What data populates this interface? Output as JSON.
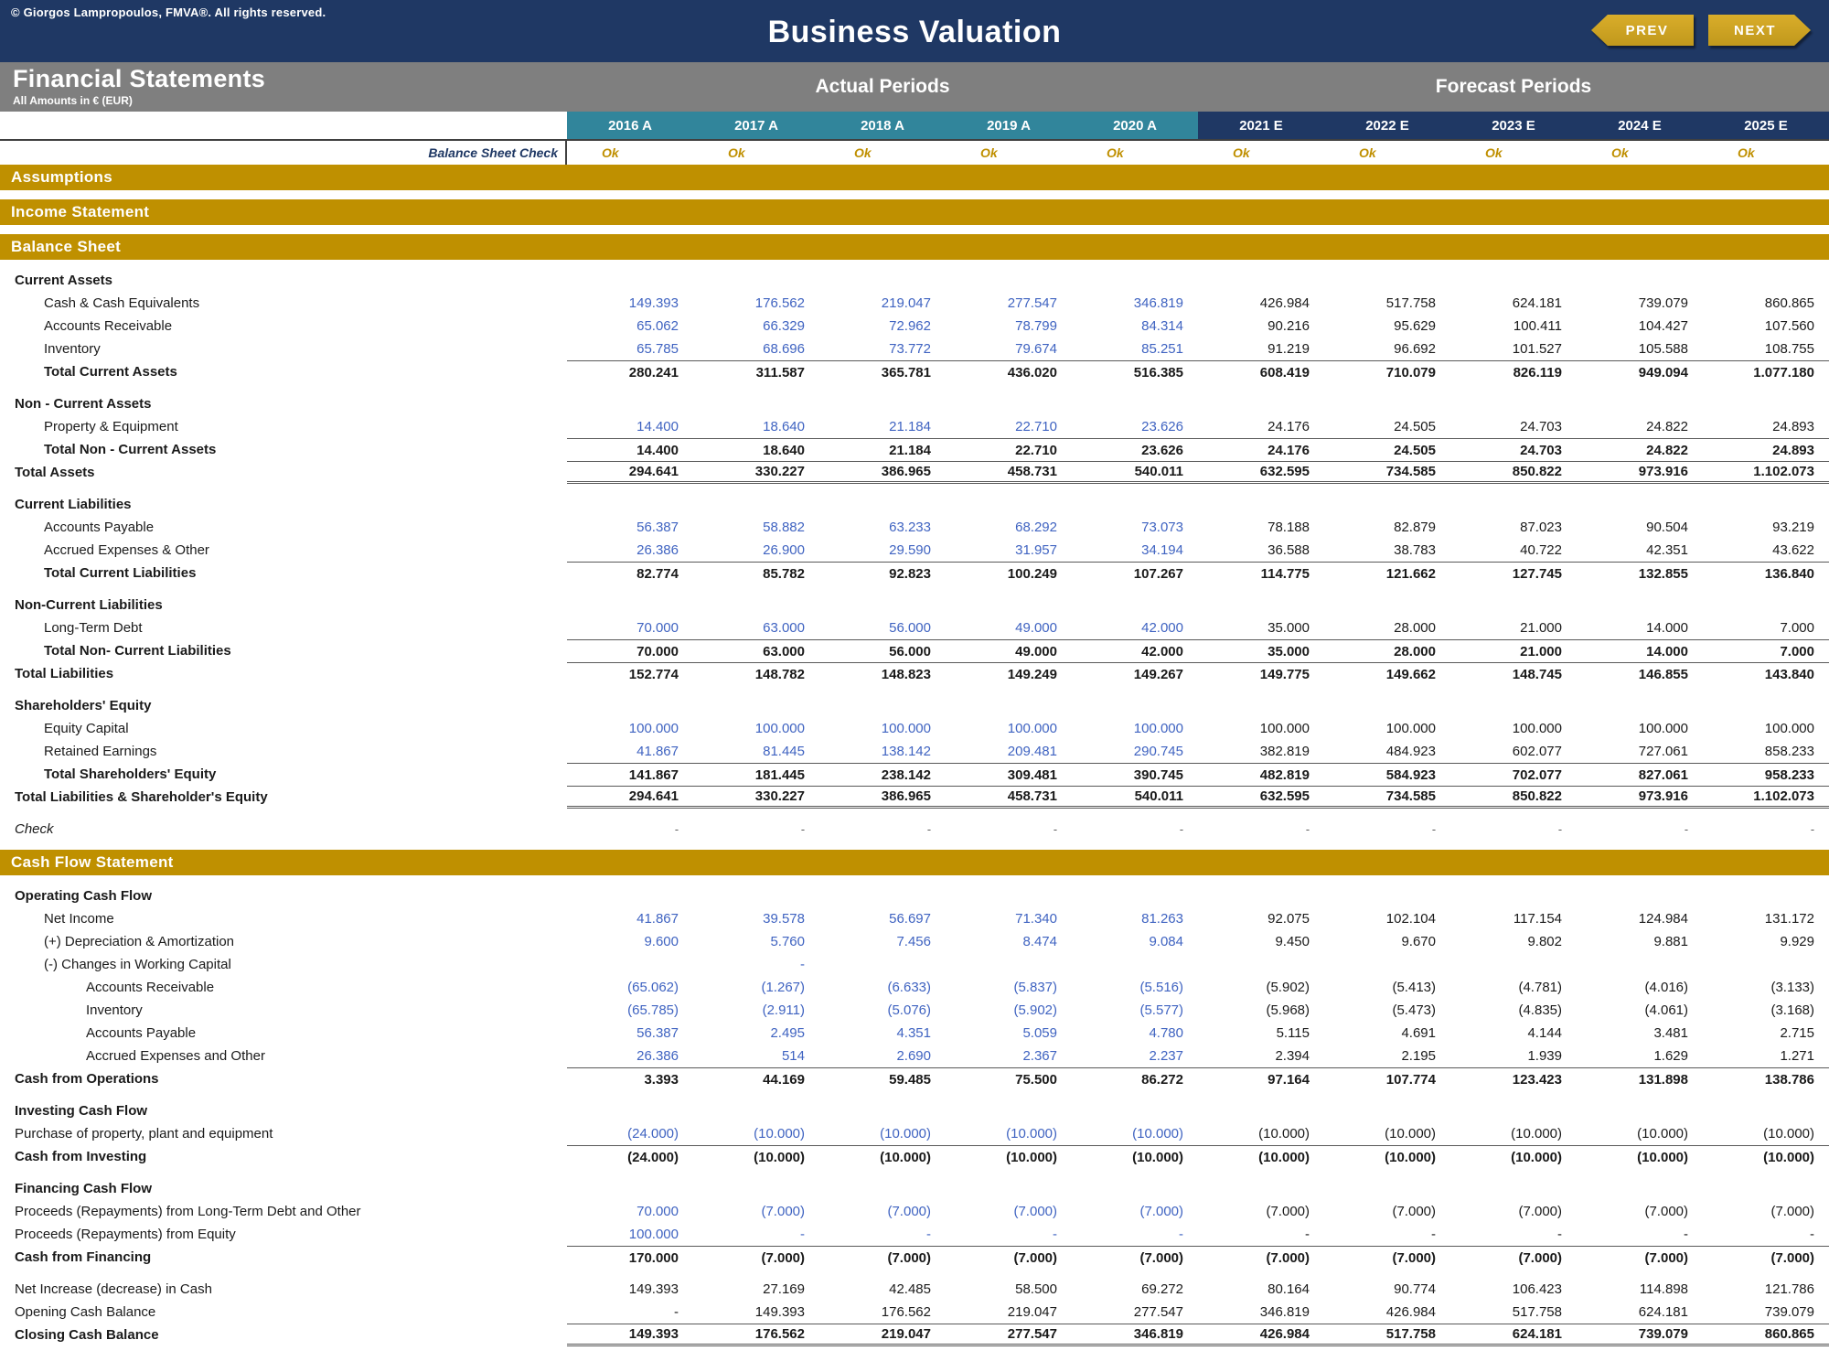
{
  "header": {
    "copyright": "© Giorgos Lampropoulos, FMVA®. All rights reserved.",
    "title": "Business Valuation",
    "prev_label": "PREV",
    "next_label": "NEXT"
  },
  "bands": {
    "left_title": "Financial Statements",
    "subtitle": "All Amounts in  € (EUR)",
    "actual_label": "Actual Periods",
    "forecast_label": "Forecast Periods"
  },
  "colors": {
    "navy": "#1f3864",
    "teal_actual": "#31859b",
    "gold_bar": "#bf9000",
    "ok_gold": "#bf8f00",
    "band_gray": "#7f7f7f",
    "actual_value_blue": "#3f63c1"
  },
  "table": {
    "actual_count": 5,
    "columns": [
      "2016 A",
      "2017 A",
      "2018 A",
      "2019 A",
      "2020 A",
      "2021 E",
      "2022 E",
      "2023 E",
      "2024 E",
      "2025 E"
    ],
    "check_row": {
      "label": "Balance Sheet Check",
      "values": [
        "Ok",
        "Ok",
        "Ok",
        "Ok",
        "Ok",
        "Ok",
        "Ok",
        "Ok",
        "Ok",
        "Ok"
      ]
    },
    "rows": [
      {
        "type": "bar",
        "label": "Assumptions"
      },
      {
        "type": "gap"
      },
      {
        "type": "bar",
        "label": "Income Statement"
      },
      {
        "type": "gap"
      },
      {
        "type": "bar",
        "label": "Balance Sheet"
      },
      {
        "type": "gap"
      },
      {
        "type": "header",
        "label": "Current Assets"
      },
      {
        "type": "row",
        "label": "Cash & Cash Equivalents",
        "indent": 1,
        "blue": true,
        "values": [
          "149.393",
          "176.562",
          "219.047",
          "277.547",
          "346.819",
          "426.984",
          "517.758",
          "624.181",
          "739.079",
          "860.865"
        ]
      },
      {
        "type": "row",
        "label": "Accounts Receivable",
        "indent": 1,
        "blue": true,
        "values": [
          "65.062",
          "66.329",
          "72.962",
          "78.799",
          "84.314",
          "90.216",
          "95.629",
          "100.411",
          "104.427",
          "107.560"
        ]
      },
      {
        "type": "row",
        "label": "Inventory",
        "indent": 1,
        "blue": true,
        "values": [
          "65.785",
          "68.696",
          "73.772",
          "79.674",
          "85.251",
          "91.219",
          "96.692",
          "101.527",
          "105.588",
          "108.755"
        ]
      },
      {
        "type": "row",
        "label": "Total Current Assets",
        "indent": 1,
        "bold": true,
        "border": "top",
        "values": [
          "280.241",
          "311.587",
          "365.781",
          "436.020",
          "516.385",
          "608.419",
          "710.079",
          "826.119",
          "949.094",
          "1.077.180"
        ]
      },
      {
        "type": "gap"
      },
      {
        "type": "header",
        "label": "Non - Current Assets"
      },
      {
        "type": "row",
        "label": "Property & Equipment",
        "indent": 1,
        "blue": true,
        "values": [
          "14.400",
          "18.640",
          "21.184",
          "22.710",
          "23.626",
          "24.176",
          "24.505",
          "24.703",
          "24.822",
          "24.893"
        ]
      },
      {
        "type": "row",
        "label": "Total Non - Current Assets",
        "indent": 1,
        "bold": true,
        "border": "top",
        "values": [
          "14.400",
          "18.640",
          "21.184",
          "22.710",
          "23.626",
          "24.176",
          "24.505",
          "24.703",
          "24.822",
          "24.893"
        ]
      },
      {
        "type": "row",
        "label": "Total Assets",
        "indent": 0,
        "bold": true,
        "border": "top-double",
        "values": [
          "294.641",
          "330.227",
          "386.965",
          "458.731",
          "540.011",
          "632.595",
          "734.585",
          "850.822",
          "973.916",
          "1.102.073"
        ]
      },
      {
        "type": "gap"
      },
      {
        "type": "header",
        "label": "Current Liabilities"
      },
      {
        "type": "row",
        "label": "Accounts Payable",
        "indent": 1,
        "blue": true,
        "values": [
          "56.387",
          "58.882",
          "63.233",
          "68.292",
          "73.073",
          "78.188",
          "82.879",
          "87.023",
          "90.504",
          "93.219"
        ]
      },
      {
        "type": "row",
        "label": "Accrued Expenses & Other",
        "indent": 1,
        "blue": true,
        "values": [
          "26.386",
          "26.900",
          "29.590",
          "31.957",
          "34.194",
          "36.588",
          "38.783",
          "40.722",
          "42.351",
          "43.622"
        ]
      },
      {
        "type": "row",
        "label": "Total Current Liabilities",
        "indent": 1,
        "bold": true,
        "border": "top",
        "values": [
          "82.774",
          "85.782",
          "92.823",
          "100.249",
          "107.267",
          "114.775",
          "121.662",
          "127.745",
          "132.855",
          "136.840"
        ]
      },
      {
        "type": "gap"
      },
      {
        "type": "header",
        "label": "Non-Current Liabilities"
      },
      {
        "type": "row",
        "label": "Long-Term Debt",
        "indent": 1,
        "blue": true,
        "values": [
          "70.000",
          "63.000",
          "56.000",
          "49.000",
          "42.000",
          "35.000",
          "28.000",
          "21.000",
          "14.000",
          "7.000"
        ]
      },
      {
        "type": "row",
        "label": "Total Non- Current Liabilities",
        "indent": 1,
        "bold": true,
        "border": "top",
        "values": [
          "70.000",
          "63.000",
          "56.000",
          "49.000",
          "42.000",
          "35.000",
          "28.000",
          "21.000",
          "14.000",
          "7.000"
        ]
      },
      {
        "type": "row",
        "label": "Total Liabilities",
        "indent": 0,
        "bold": true,
        "border": "top",
        "values": [
          "152.774",
          "148.782",
          "148.823",
          "149.249",
          "149.267",
          "149.775",
          "149.662",
          "148.745",
          "146.855",
          "143.840"
        ]
      },
      {
        "type": "gap"
      },
      {
        "type": "header",
        "label": "Shareholders' Equity"
      },
      {
        "type": "row",
        "label": "Equity Capital",
        "indent": 1,
        "blue": true,
        "values": [
          "100.000",
          "100.000",
          "100.000",
          "100.000",
          "100.000",
          "100.000",
          "100.000",
          "100.000",
          "100.000",
          "100.000"
        ]
      },
      {
        "type": "row",
        "label": "Retained Earnings",
        "indent": 1,
        "blue": true,
        "values": [
          "41.867",
          "81.445",
          "138.142",
          "209.481",
          "290.745",
          "382.819",
          "484.923",
          "602.077",
          "727.061",
          "858.233"
        ]
      },
      {
        "type": "row",
        "label": "Total Shareholders' Equity",
        "indent": 1,
        "bold": true,
        "border": "top",
        "values": [
          "141.867",
          "181.445",
          "238.142",
          "309.481",
          "390.745",
          "482.819",
          "584.923",
          "702.077",
          "827.061",
          "958.233"
        ]
      },
      {
        "type": "row",
        "label": "Total Liabilities & Shareholder's Equity",
        "indent": 0,
        "bold": true,
        "border": "top-double",
        "values": [
          "294.641",
          "330.227",
          "386.965",
          "458.731",
          "540.011",
          "632.595",
          "734.585",
          "850.822",
          "973.916",
          "1.102.073"
        ]
      },
      {
        "type": "gap"
      },
      {
        "type": "row",
        "label": "Check",
        "indent": 0,
        "italic": true,
        "muted": true,
        "values": [
          "-",
          "-",
          "-",
          "-",
          "-",
          "-",
          "-",
          "-",
          "-",
          "-"
        ]
      },
      {
        "type": "gap"
      },
      {
        "type": "bar",
        "label": "Cash Flow Statement"
      },
      {
        "type": "gap"
      },
      {
        "type": "header",
        "label": "Operating Cash Flow"
      },
      {
        "type": "row",
        "label": "Net Income",
        "indent": 1,
        "blue": true,
        "values": [
          "41.867",
          "39.578",
          "56.697",
          "71.340",
          "81.263",
          "92.075",
          "102.104",
          "117.154",
          "124.984",
          "131.172"
        ]
      },
      {
        "type": "row",
        "label": "(+) Depreciation & Amortization",
        "indent": 1,
        "blue": true,
        "values": [
          "9.600",
          "5.760",
          "7.456",
          "8.474",
          "9.084",
          "9.450",
          "9.670",
          "9.802",
          "9.881",
          "9.929"
        ]
      },
      {
        "type": "row",
        "label": "(-) Changes in Working Capital",
        "indent": 1,
        "blue": true,
        "values": [
          "",
          "-",
          "",
          "",
          "",
          "",
          "",
          "",
          "",
          ""
        ]
      },
      {
        "type": "row",
        "label": "Accounts Receivable",
        "indent": 2,
        "blue": true,
        "values": [
          "(65.062)",
          "(1.267)",
          "(6.633)",
          "(5.837)",
          "(5.516)",
          "(5.902)",
          "(5.413)",
          "(4.781)",
          "(4.016)",
          "(3.133)"
        ]
      },
      {
        "type": "row",
        "label": "Inventory",
        "indent": 2,
        "blue": true,
        "values": [
          "(65.785)",
          "(2.911)",
          "(5.076)",
          "(5.902)",
          "(5.577)",
          "(5.968)",
          "(5.473)",
          "(4.835)",
          "(4.061)",
          "(3.168)"
        ]
      },
      {
        "type": "row",
        "label": "Accounts Payable",
        "indent": 2,
        "blue": true,
        "values": [
          "56.387",
          "2.495",
          "4.351",
          "5.059",
          "4.780",
          "5.115",
          "4.691",
          "4.144",
          "3.481",
          "2.715"
        ]
      },
      {
        "type": "row",
        "label": "Accrued Expenses and Other",
        "indent": 2,
        "blue": true,
        "values": [
          "26.386",
          "514",
          "2.690",
          "2.367",
          "2.237",
          "2.394",
          "2.195",
          "1.939",
          "1.629",
          "1.271"
        ]
      },
      {
        "type": "row",
        "label": "Cash from Operations",
        "indent": 0,
        "bold": true,
        "border": "top",
        "values": [
          "3.393",
          "44.169",
          "59.485",
          "75.500",
          "86.272",
          "97.164",
          "107.774",
          "123.423",
          "131.898",
          "138.786"
        ]
      },
      {
        "type": "gap"
      },
      {
        "type": "header",
        "label": "Investing Cash Flow"
      },
      {
        "type": "row",
        "label": "Purchase of property, plant and equipment",
        "indent": 0,
        "blue": true,
        "values": [
          "(24.000)",
          "(10.000)",
          "(10.000)",
          "(10.000)",
          "(10.000)",
          "(10.000)",
          "(10.000)",
          "(10.000)",
          "(10.000)",
          "(10.000)"
        ]
      },
      {
        "type": "row",
        "label": "Cash from Investing",
        "indent": 0,
        "bold": true,
        "border": "top",
        "values": [
          "(24.000)",
          "(10.000)",
          "(10.000)",
          "(10.000)",
          "(10.000)",
          "(10.000)",
          "(10.000)",
          "(10.000)",
          "(10.000)",
          "(10.000)"
        ]
      },
      {
        "type": "gap"
      },
      {
        "type": "header",
        "label": "Financing Cash Flow"
      },
      {
        "type": "row",
        "label": "Proceeds (Repayments) from Long-Term Debt and Other",
        "indent": 0,
        "blue": true,
        "values": [
          "70.000",
          "(7.000)",
          "(7.000)",
          "(7.000)",
          "(7.000)",
          "(7.000)",
          "(7.000)",
          "(7.000)",
          "(7.000)",
          "(7.000)"
        ]
      },
      {
        "type": "row",
        "label": "Proceeds (Repayments) from Equity",
        "indent": 0,
        "blue": true,
        "values": [
          "100.000",
          "-",
          "-",
          "-",
          "-",
          "-",
          "-",
          "-",
          "-",
          "-"
        ]
      },
      {
        "type": "row",
        "label": "Cash from Financing",
        "indent": 0,
        "bold": true,
        "border": "top",
        "values": [
          "170.000",
          "(7.000)",
          "(7.000)",
          "(7.000)",
          "(7.000)",
          "(7.000)",
          "(7.000)",
          "(7.000)",
          "(7.000)",
          "(7.000)"
        ]
      },
      {
        "type": "gap"
      },
      {
        "type": "row",
        "label": "Net Increase (decrease) in Cash",
        "indent": 0,
        "values": [
          "149.393",
          "27.169",
          "42.485",
          "58.500",
          "69.272",
          "80.164",
          "90.774",
          "106.423",
          "114.898",
          "121.786"
        ]
      },
      {
        "type": "row",
        "label": "Opening Cash Balance",
        "indent": 0,
        "values": [
          "-",
          "149.393",
          "176.562",
          "219.047",
          "277.547",
          "346.819",
          "426.984",
          "517.758",
          "624.181",
          "739.079"
        ]
      },
      {
        "type": "row",
        "label": "Closing Cash Balance",
        "indent": 0,
        "bold": true,
        "border": "top-double",
        "values": [
          "149.393",
          "176.562",
          "219.047",
          "277.547",
          "346.819",
          "426.984",
          "517.758",
          "624.181",
          "739.079",
          "860.865"
        ]
      }
    ]
  }
}
